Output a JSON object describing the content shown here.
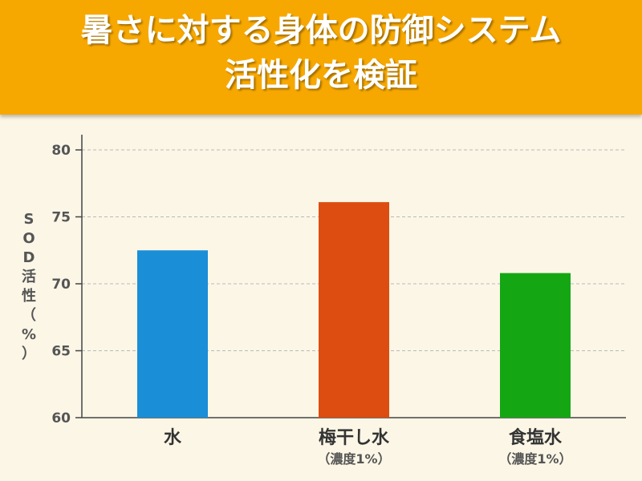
{
  "header": {
    "title_line1": "暑さに対する身体の防御システム",
    "title_line2": "活性化を検証"
  },
  "colors": {
    "header_bg": "#f7a800",
    "background": "#fbf6e6",
    "bar_water": "#1a8fd8",
    "bar_umeboshi": "#dd4c10",
    "bar_salt": "#15a614"
  },
  "chart_data": {
    "type": "bar",
    "ylabel": "SOD活性（%）",
    "ylim": [
      60,
      80
    ],
    "yticks": [
      60,
      65,
      70,
      75,
      80
    ],
    "grid": true,
    "categories": [
      {
        "label": "水",
        "sublabel": ""
      },
      {
        "label": "梅干し水",
        "sublabel": "（濃度1%）"
      },
      {
        "label": "食塩水",
        "sublabel": "（濃度1%）"
      }
    ],
    "values": [
      72.5,
      76.1,
      70.8
    ]
  }
}
